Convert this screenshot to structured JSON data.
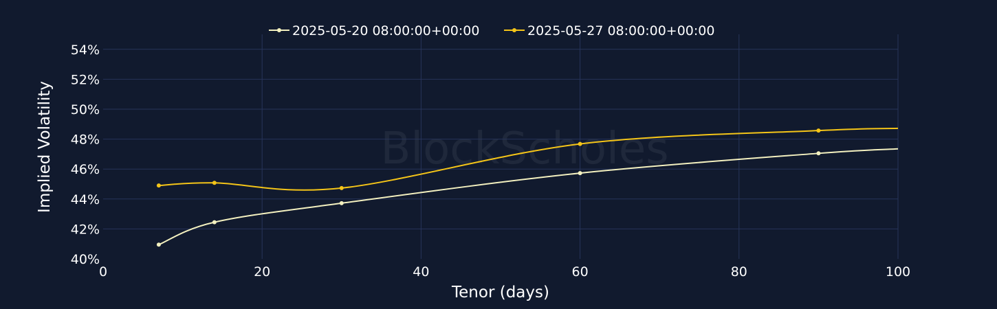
{
  "watermark": "BlockScholes",
  "colors": {
    "background": "#111a2e",
    "grid": "#27345a",
    "text": "#ffffff"
  },
  "chart_data": {
    "type": "line",
    "title": "",
    "xlabel": "Tenor (days)",
    "ylabel": "Implied Volatility",
    "xlim": [
      0,
      100
    ],
    "ylim": [
      40,
      55
    ],
    "xticks": [
      0,
      20,
      40,
      60,
      80,
      100
    ],
    "yticks": [
      40,
      42,
      44,
      46,
      48,
      50,
      52,
      54
    ],
    "ytick_suffix": "%",
    "grid": true,
    "legend_position": "top-center",
    "series": [
      {
        "name": "2025-05-20 08:00:00+00:00",
        "color": "#f4f1c0",
        "x": [
          7,
          14,
          30,
          60,
          90,
          100
        ],
        "y": [
          40.95,
          42.45,
          43.72,
          45.73,
          47.05,
          47.35
        ]
      },
      {
        "name": "2025-05-27 08:00:00+00:00",
        "color": "#f5c518",
        "x": [
          7,
          14,
          30,
          60,
          90,
          100
        ],
        "y": [
          44.9,
          45.08,
          44.73,
          47.68,
          48.57,
          48.72
        ]
      }
    ]
  }
}
